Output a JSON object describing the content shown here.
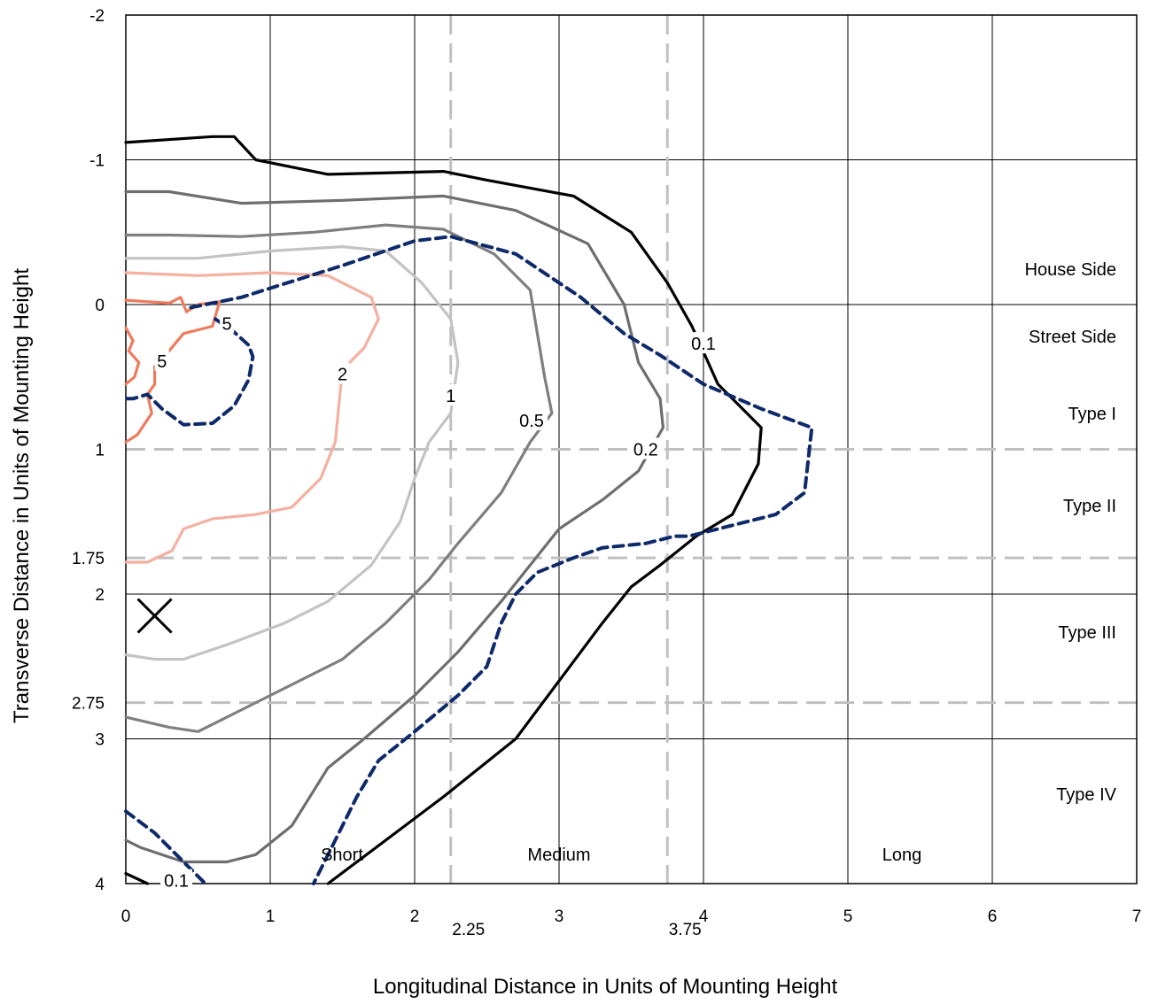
{
  "chart_data": {
    "type": "contour",
    "xlabel": "Longitudinal Distance in Units of Mounting Height",
    "ylabel": "Transverse Distance in Units of Mounting Height",
    "xlim": [
      0,
      7
    ],
    "ylim": [
      -2,
      4
    ],
    "y_inverted": true,
    "x_ticks": [
      "0",
      "1",
      "2",
      "3",
      "4",
      "5",
      "6",
      "7"
    ],
    "x_ticks_extra": [
      "2.25",
      "3.75"
    ],
    "y_ticks": [
      "-2",
      "-1",
      "0",
      "1",
      "1.75",
      "2",
      "2.75",
      "3",
      "4"
    ],
    "grid": true,
    "classification_lines": {
      "x": [
        2.25,
        3.75
      ],
      "y": [
        1,
        1.75,
        2.75
      ]
    },
    "region_labels": {
      "house_side": "House Side",
      "street_side": "Street Side",
      "type1": "Type I",
      "type2": "Type II",
      "type3": "Type III",
      "type4": "Type IV",
      "short": "Short",
      "medium": "Medium",
      "long": "Long"
    },
    "luminaire_marker": {
      "x": 0.2,
      "y": 2.15,
      "symbol": "×"
    },
    "colors": {
      "c0.1": "#000000",
      "c0.2": "#6e6e6e",
      "c0.5": "#7f7f7f",
      "c1": "#c3c3c3",
      "c2": "#f4b0a0",
      "c5": "#ee7b5c",
      "max_candela": "#0e2a6b",
      "guide": "#c0c0c0"
    },
    "contours": [
      {
        "level": "0.1",
        "color_key": "c0.1",
        "points": [
          [
            0,
            -1.12
          ],
          [
            0.6,
            -1.16
          ],
          [
            0.75,
            -1.16
          ],
          [
            0.9,
            -1.0
          ],
          [
            1.4,
            -0.9
          ],
          [
            2.2,
            -0.92
          ],
          [
            2.5,
            -0.86
          ],
          [
            3.1,
            -0.75
          ],
          [
            3.5,
            -0.5
          ],
          [
            3.75,
            -0.15
          ],
          [
            3.92,
            0.15
          ],
          [
            4.1,
            0.55
          ],
          [
            4.3,
            0.75
          ],
          [
            4.4,
            0.85
          ],
          [
            4.38,
            1.1
          ],
          [
            4.2,
            1.45
          ],
          [
            3.95,
            1.6
          ],
          [
            3.7,
            1.8
          ],
          [
            3.5,
            1.95
          ],
          [
            3.3,
            2.2
          ],
          [
            3.0,
            2.6
          ],
          [
            2.7,
            3.0
          ],
          [
            2.2,
            3.4
          ],
          [
            1.8,
            3.7
          ],
          [
            1.4,
            4.0
          ]
        ]
      },
      {
        "level": "0.1",
        "color_key": "c0.1",
        "points": [
          [
            0,
            3.93
          ],
          [
            0.15,
            4.0
          ]
        ]
      },
      {
        "level": "0.2",
        "color_key": "c0.2",
        "points": [
          [
            0,
            -0.78
          ],
          [
            0.3,
            -0.78
          ],
          [
            0.8,
            -0.7
          ],
          [
            1.5,
            -0.72
          ],
          [
            2.2,
            -0.75
          ],
          [
            2.7,
            -0.65
          ],
          [
            3.2,
            -0.42
          ],
          [
            3.45,
            0.0
          ],
          [
            3.55,
            0.4
          ],
          [
            3.7,
            0.65
          ],
          [
            3.72,
            0.85
          ],
          [
            3.55,
            1.15
          ],
          [
            3.3,
            1.35
          ],
          [
            3.0,
            1.55
          ],
          [
            2.8,
            1.8
          ],
          [
            2.6,
            2.05
          ],
          [
            2.3,
            2.4
          ],
          [
            2.0,
            2.7
          ],
          [
            1.65,
            3.0
          ],
          [
            1.4,
            3.2
          ],
          [
            1.15,
            3.6
          ],
          [
            0.9,
            3.8
          ],
          [
            0.7,
            3.85
          ],
          [
            0.4,
            3.85
          ],
          [
            0.1,
            3.75
          ],
          [
            0,
            3.7
          ]
        ]
      },
      {
        "level": "0.5",
        "color_key": "c0.5",
        "points": [
          [
            0,
            -0.48
          ],
          [
            0.3,
            -0.48
          ],
          [
            0.8,
            -0.47
          ],
          [
            1.3,
            -0.5
          ],
          [
            1.8,
            -0.55
          ],
          [
            2.2,
            -0.52
          ],
          [
            2.55,
            -0.35
          ],
          [
            2.8,
            -0.1
          ],
          [
            2.85,
            0.2
          ],
          [
            2.9,
            0.5
          ],
          [
            2.95,
            0.75
          ],
          [
            2.8,
            0.95
          ],
          [
            2.6,
            1.3
          ],
          [
            2.3,
            1.65
          ],
          [
            2.1,
            1.9
          ],
          [
            1.8,
            2.2
          ],
          [
            1.5,
            2.45
          ],
          [
            1.0,
            2.7
          ],
          [
            0.7,
            2.85
          ],
          [
            0.5,
            2.95
          ],
          [
            0.3,
            2.92
          ],
          [
            0,
            2.85
          ]
        ]
      },
      {
        "level": "1",
        "color_key": "c1",
        "points": [
          [
            0,
            -0.32
          ],
          [
            0.5,
            -0.32
          ],
          [
            1.0,
            -0.37
          ],
          [
            1.5,
            -0.4
          ],
          [
            1.8,
            -0.37
          ],
          [
            2.05,
            -0.15
          ],
          [
            2.25,
            0.1
          ],
          [
            2.3,
            0.4
          ],
          [
            2.25,
            0.75
          ],
          [
            2.1,
            0.95
          ],
          [
            2.0,
            1.2
          ],
          [
            1.9,
            1.5
          ],
          [
            1.7,
            1.8
          ],
          [
            1.4,
            2.05
          ],
          [
            1.1,
            2.2
          ],
          [
            0.7,
            2.35
          ],
          [
            0.4,
            2.45
          ],
          [
            0.2,
            2.45
          ],
          [
            0,
            2.42
          ]
        ]
      },
      {
        "level": "2",
        "color_key": "c2",
        "points": [
          [
            0,
            -0.22
          ],
          [
            0.5,
            -0.2
          ],
          [
            1.0,
            -0.22
          ],
          [
            1.4,
            -0.2
          ],
          [
            1.7,
            -0.05
          ],
          [
            1.75,
            0.1
          ],
          [
            1.65,
            0.3
          ],
          [
            1.5,
            0.45
          ],
          [
            1.48,
            0.65
          ],
          [
            1.45,
            0.95
          ],
          [
            1.35,
            1.2
          ],
          [
            1.15,
            1.4
          ],
          [
            0.9,
            1.45
          ],
          [
            0.6,
            1.48
          ],
          [
            0.4,
            1.55
          ],
          [
            0.32,
            1.7
          ],
          [
            0.15,
            1.78
          ],
          [
            0,
            1.78
          ]
        ]
      },
      {
        "level": "5",
        "color_key": "c5",
        "points": [
          [
            0,
            -0.03
          ],
          [
            0.3,
            -0.01
          ],
          [
            0.38,
            -0.05
          ],
          [
            0.42,
            0.05
          ],
          [
            0.5,
            0.0
          ],
          [
            0.65,
            -0.02
          ],
          [
            0.6,
            0.15
          ],
          [
            0.4,
            0.2
          ],
          [
            0.3,
            0.32
          ],
          [
            0.2,
            0.43
          ],
          [
            0.2,
            0.55
          ],
          [
            0.15,
            0.62
          ],
          [
            0.18,
            0.75
          ],
          [
            0.08,
            0.9
          ],
          [
            0,
            0.95
          ]
        ]
      },
      {
        "level": "5",
        "color_key": "c5",
        "points": [
          [
            0,
            0.16
          ],
          [
            0.05,
            0.25
          ],
          [
            0.02,
            0.32
          ],
          [
            0.09,
            0.4
          ],
          [
            0.06,
            0.5
          ],
          [
            0,
            0.55
          ]
        ]
      },
      {
        "level": "max",
        "color_key": "max_candela",
        "dashed": true,
        "points": [
          [
            0.45,
            0.02
          ],
          [
            0.8,
            -0.05
          ],
          [
            1.5,
            -0.27
          ],
          [
            2.0,
            -0.44
          ],
          [
            2.25,
            -0.47
          ],
          [
            2.7,
            -0.35
          ],
          [
            3.15,
            -0.05
          ],
          [
            3.45,
            0.2
          ],
          [
            3.7,
            0.35
          ],
          [
            4.0,
            0.55
          ],
          [
            4.4,
            0.72
          ],
          [
            4.75,
            0.85
          ],
          [
            4.7,
            1.3
          ],
          [
            4.5,
            1.45
          ],
          [
            3.9,
            1.6
          ],
          [
            3.8,
            1.6
          ],
          [
            3.6,
            1.65
          ],
          [
            3.3,
            1.68
          ],
          [
            3.1,
            1.75
          ],
          [
            2.85,
            1.85
          ],
          [
            2.7,
            2.0
          ],
          [
            2.6,
            2.2
          ],
          [
            2.5,
            2.5
          ],
          [
            2.3,
            2.7
          ],
          [
            2.0,
            2.95
          ],
          [
            1.75,
            3.15
          ],
          [
            1.6,
            3.4
          ],
          [
            1.45,
            3.7
          ],
          [
            1.3,
            4.0
          ]
        ]
      },
      {
        "level": "max",
        "color_key": "max_candela",
        "dashed": true,
        "points": [
          [
            0.62,
            0.1
          ],
          [
            0.75,
            0.19
          ],
          [
            0.85,
            0.28
          ],
          [
            0.88,
            0.36
          ],
          [
            0.85,
            0.52
          ],
          [
            0.75,
            0.7
          ],
          [
            0.6,
            0.82
          ],
          [
            0.4,
            0.83
          ],
          [
            0.25,
            0.72
          ],
          [
            0.15,
            0.62
          ],
          [
            0.05,
            0.65
          ],
          [
            0,
            0.65
          ]
        ]
      },
      {
        "level": "max",
        "color_key": "max_candela",
        "dashed": true,
        "points": [
          [
            0,
            3.5
          ],
          [
            0.2,
            3.65
          ],
          [
            0.4,
            3.85
          ],
          [
            0.55,
            4.0
          ]
        ]
      }
    ],
    "contour_labels": [
      {
        "text": "0.1",
        "x": 4.0,
        "y": 0.27
      },
      {
        "text": "0.2",
        "x": 3.6,
        "y": 1.0
      },
      {
        "text": "0.5",
        "x": 2.81,
        "y": 0.8
      },
      {
        "text": "1",
        "x": 2.25,
        "y": 0.63
      },
      {
        "text": "2",
        "x": 1.5,
        "y": 0.48
      },
      {
        "text": "5",
        "x": 0.7,
        "y": 0.13
      },
      {
        "text": "5",
        "x": 0.25,
        "y": 0.39
      },
      {
        "text": "0.1",
        "x": 0.35,
        "y": 3.98
      }
    ]
  }
}
